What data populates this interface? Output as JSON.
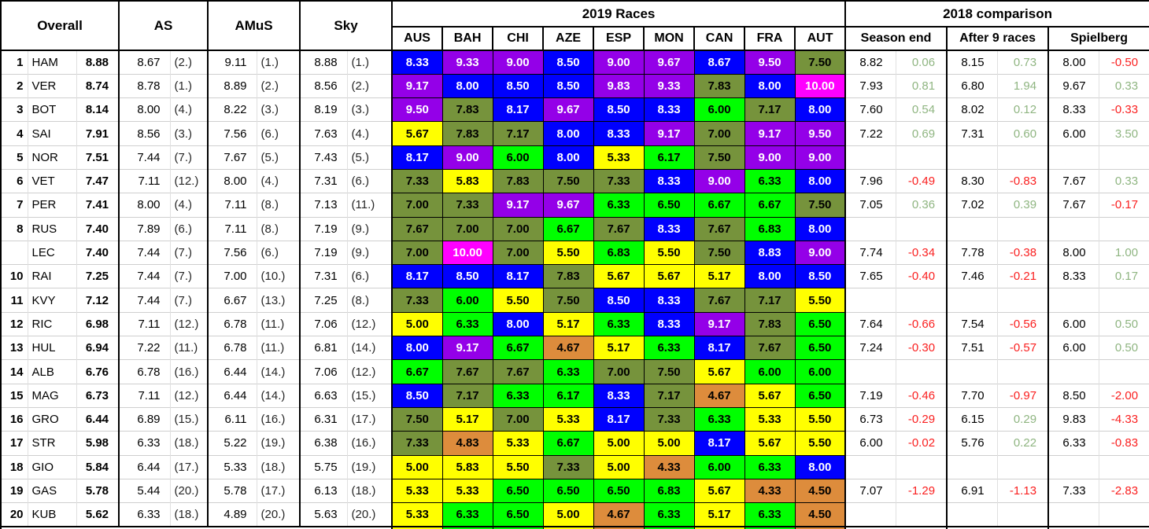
{
  "header": {
    "overall": "Overall",
    "as": "AS",
    "amus": "AMuS",
    "sky": "Sky",
    "races_title": "2019 Races",
    "race_cols": [
      "AUS",
      "BAH",
      "CHI",
      "AZE",
      "ESP",
      "MON",
      "CAN",
      "FRA",
      "AUT"
    ],
    "comparison_title": "2018 comparison",
    "comparison_cols": [
      "Season end",
      "After 9 races",
      "Spielberg"
    ]
  },
  "colors": {
    "band_10": "#FF00FF",
    "band_9": "#9400E8",
    "band_8": "#0000FE",
    "band_7": "#76933C",
    "band_6": "#00FF00",
    "band_5": "#FFFF00",
    "band_4": "#DD8C3C",
    "race_text_light": "#FFFFFF",
    "race_text_dark": "#000000",
    "diff_positive": "#8FB581",
    "diff_negative": "#FA2020"
  },
  "rows": [
    {
      "rank": "1",
      "code": "HAM",
      "overall": "8.88",
      "as": "8.67",
      "as_rank": "(2.)",
      "amus": "9.11",
      "amus_rank": "(1.)",
      "sky": "8.88",
      "sky_rank": "(1.)",
      "races": [
        "8.33",
        "9.33",
        "9.00",
        "8.50",
        "9.00",
        "9.67",
        "8.67",
        "9.50",
        "7.50"
      ],
      "season_end": "8.82",
      "season_end_diff": "0.06",
      "after9": "8.15",
      "after9_diff": "0.73",
      "spielberg": "8.00",
      "spielberg_diff": "-0.50"
    },
    {
      "rank": "2",
      "code": "VER",
      "overall": "8.74",
      "as": "8.78",
      "as_rank": "(1.)",
      "amus": "8.89",
      "amus_rank": "(2.)",
      "sky": "8.56",
      "sky_rank": "(2.)",
      "races": [
        "9.17",
        "8.00",
        "8.50",
        "8.50",
        "9.83",
        "9.33",
        "7.83",
        "8.00",
        "10.00"
      ],
      "season_end": "7.93",
      "season_end_diff": "0.81",
      "after9": "6.80",
      "after9_diff": "1.94",
      "spielberg": "9.67",
      "spielberg_diff": "0.33"
    },
    {
      "rank": "3",
      "code": "BOT",
      "overall": "8.14",
      "as": "8.00",
      "as_rank": "(4.)",
      "amus": "8.22",
      "amus_rank": "(3.)",
      "sky": "8.19",
      "sky_rank": "(3.)",
      "races": [
        "9.50",
        "7.83",
        "8.17",
        "9.67",
        "8.50",
        "8.33",
        "6.00",
        "7.17",
        "8.00"
      ],
      "season_end": "7.60",
      "season_end_diff": "0.54",
      "after9": "8.02",
      "after9_diff": "0.12",
      "spielberg": "8.33",
      "spielberg_diff": "-0.33"
    },
    {
      "rank": "4",
      "code": "SAI",
      "overall": "7.91",
      "as": "8.56",
      "as_rank": "(3.)",
      "amus": "7.56",
      "amus_rank": "(6.)",
      "sky": "7.63",
      "sky_rank": "(4.)",
      "races": [
        "5.67",
        "7.83",
        "7.17",
        "8.00",
        "8.33",
        "9.17",
        "7.00",
        "9.17",
        "9.50"
      ],
      "season_end": "7.22",
      "season_end_diff": "0.69",
      "after9": "7.31",
      "after9_diff": "0.60",
      "spielberg": "6.00",
      "spielberg_diff": "3.50"
    },
    {
      "rank": "5",
      "code": "NOR",
      "overall": "7.51",
      "as": "7.44",
      "as_rank": "(7.)",
      "amus": "7.67",
      "amus_rank": "(5.)",
      "sky": "7.43",
      "sky_rank": "(5.)",
      "races": [
        "8.17",
        "9.00",
        "6.00",
        "8.00",
        "5.33",
        "6.17",
        "7.50",
        "9.00",
        "9.00"
      ],
      "season_end": "",
      "season_end_diff": "",
      "after9": "",
      "after9_diff": "",
      "spielberg": "",
      "spielberg_diff": ""
    },
    {
      "rank": "6",
      "code": "VET",
      "overall": "7.47",
      "as": "7.11",
      "as_rank": "(12.)",
      "amus": "8.00",
      "amus_rank": "(4.)",
      "sky": "7.31",
      "sky_rank": "(6.)",
      "races": [
        "7.33",
        "5.83",
        "7.83",
        "7.50",
        "7.33",
        "8.33",
        "9.00",
        "6.33",
        "8.00"
      ],
      "season_end": "7.96",
      "season_end_diff": "-0.49",
      "after9": "8.30",
      "after9_diff": "-0.83",
      "spielberg": "7.67",
      "spielberg_diff": "0.33"
    },
    {
      "rank": "7",
      "code": "PER",
      "overall": "7.41",
      "as": "8.00",
      "as_rank": "(4.)",
      "amus": "7.11",
      "amus_rank": "(8.)",
      "sky": "7.13",
      "sky_rank": "(11.)",
      "races": [
        "7.00",
        "7.33",
        "9.17",
        "9.67",
        "6.33",
        "6.50",
        "6.67",
        "6.67",
        "7.50"
      ],
      "season_end": "7.05",
      "season_end_diff": "0.36",
      "after9": "7.02",
      "after9_diff": "0.39",
      "spielberg": "7.67",
      "spielberg_diff": "-0.17"
    },
    {
      "rank": "8",
      "code": "RUS",
      "overall": "7.40",
      "as": "7.89",
      "as_rank": "(6.)",
      "amus": "7.11",
      "amus_rank": "(8.)",
      "sky": "7.19",
      "sky_rank": "(9.)",
      "races": [
        "7.67",
        "7.00",
        "7.00",
        "6.67",
        "7.67",
        "8.33",
        "7.67",
        "6.83",
        "8.00"
      ],
      "season_end": "",
      "season_end_diff": "",
      "after9": "",
      "after9_diff": "",
      "spielberg": "",
      "spielberg_diff": ""
    },
    {
      "rank": "",
      "code": "LEC",
      "overall": "7.40",
      "as": "7.44",
      "as_rank": "(7.)",
      "amus": "7.56",
      "amus_rank": "(6.)",
      "sky": "7.19",
      "sky_rank": "(9.)",
      "races": [
        "7.00",
        "10.00",
        "7.00",
        "5.50",
        "6.83",
        "5.50",
        "7.50",
        "8.83",
        "9.00"
      ],
      "season_end": "7.74",
      "season_end_diff": "-0.34",
      "after9": "7.78",
      "after9_diff": "-0.38",
      "spielberg": "8.00",
      "spielberg_diff": "1.00"
    },
    {
      "rank": "10",
      "code": "RAI",
      "overall": "7.25",
      "as": "7.44",
      "as_rank": "(7.)",
      "amus": "7.00",
      "amus_rank": "(10.)",
      "sky": "7.31",
      "sky_rank": "(6.)",
      "races": [
        "8.17",
        "8.50",
        "8.17",
        "7.83",
        "5.67",
        "5.67",
        "5.17",
        "8.00",
        "8.50"
      ],
      "season_end": "7.65",
      "season_end_diff": "-0.40",
      "after9": "7.46",
      "after9_diff": "-0.21",
      "spielberg": "8.33",
      "spielberg_diff": "0.17"
    },
    {
      "rank": "11",
      "code": "KVY",
      "overall": "7.12",
      "as": "7.44",
      "as_rank": "(7.)",
      "amus": "6.67",
      "amus_rank": "(13.)",
      "sky": "7.25",
      "sky_rank": "(8.)",
      "races": [
        "7.33",
        "6.00",
        "5.50",
        "7.50",
        "8.50",
        "8.33",
        "7.67",
        "7.17",
        "5.50"
      ],
      "season_end": "",
      "season_end_diff": "",
      "after9": "",
      "after9_diff": "",
      "spielberg": "",
      "spielberg_diff": ""
    },
    {
      "rank": "12",
      "code": "RIC",
      "overall": "6.98",
      "as": "7.11",
      "as_rank": "(12.)",
      "amus": "6.78",
      "amus_rank": "(11.)",
      "sky": "7.06",
      "sky_rank": "(12.)",
      "races": [
        "5.00",
        "6.33",
        "8.00",
        "5.17",
        "6.33",
        "8.33",
        "9.17",
        "7.83",
        "6.50"
      ],
      "season_end": "7.64",
      "season_end_diff": "-0.66",
      "after9": "7.54",
      "after9_diff": "-0.56",
      "spielberg": "6.00",
      "spielberg_diff": "0.50"
    },
    {
      "rank": "13",
      "code": "HUL",
      "overall": "6.94",
      "as": "7.22",
      "as_rank": "(11.)",
      "amus": "6.78",
      "amus_rank": "(11.)",
      "sky": "6.81",
      "sky_rank": "(14.)",
      "races": [
        "8.00",
        "9.17",
        "6.67",
        "4.67",
        "5.17",
        "6.33",
        "8.17",
        "7.67",
        "6.50"
      ],
      "season_end": "7.24",
      "season_end_diff": "-0.30",
      "after9": "7.51",
      "after9_diff": "-0.57",
      "spielberg": "6.00",
      "spielberg_diff": "0.50"
    },
    {
      "rank": "14",
      "code": "ALB",
      "overall": "6.76",
      "as": "6.78",
      "as_rank": "(16.)",
      "amus": "6.44",
      "amus_rank": "(14.)",
      "sky": "7.06",
      "sky_rank": "(12.)",
      "races": [
        "6.67",
        "7.67",
        "7.67",
        "6.33",
        "7.00",
        "7.50",
        "5.67",
        "6.00",
        "6.00"
      ],
      "season_end": "",
      "season_end_diff": "",
      "after9": "",
      "after9_diff": "",
      "spielberg": "",
      "spielberg_diff": ""
    },
    {
      "rank": "15",
      "code": "MAG",
      "overall": "6.73",
      "as": "7.11",
      "as_rank": "(12.)",
      "amus": "6.44",
      "amus_rank": "(14.)",
      "sky": "6.63",
      "sky_rank": "(15.)",
      "races": [
        "8.50",
        "7.17",
        "6.33",
        "6.17",
        "8.33",
        "7.17",
        "4.67",
        "5.67",
        "6.50"
      ],
      "season_end": "7.19",
      "season_end_diff": "-0.46",
      "after9": "7.70",
      "after9_diff": "-0.97",
      "spielberg": "8.50",
      "spielberg_diff": "-2.00"
    },
    {
      "rank": "16",
      "code": "GRO",
      "overall": "6.44",
      "as": "6.89",
      "as_rank": "(15.)",
      "amus": "6.11",
      "amus_rank": "(16.)",
      "sky": "6.31",
      "sky_rank": "(17.)",
      "races": [
        "7.50",
        "5.17",
        "7.00",
        "5.33",
        "8.17",
        "7.33",
        "6.33",
        "5.33",
        "5.50"
      ],
      "season_end": "6.73",
      "season_end_diff": "-0.29",
      "after9": "6.15",
      "after9_diff": "0.29",
      "spielberg": "9.83",
      "spielberg_diff": "-4.33"
    },
    {
      "rank": "17",
      "code": "STR",
      "overall": "5.98",
      "as": "6.33",
      "as_rank": "(18.)",
      "amus": "5.22",
      "amus_rank": "(19.)",
      "sky": "6.38",
      "sky_rank": "(16.)",
      "races": [
        "7.33",
        "4.83",
        "5.33",
        "6.67",
        "5.00",
        "5.00",
        "8.17",
        "5.67",
        "5.50"
      ],
      "season_end": "6.00",
      "season_end_diff": "-0.02",
      "after9": "5.76",
      "after9_diff": "0.22",
      "spielberg": "6.33",
      "spielberg_diff": "-0.83"
    },
    {
      "rank": "18",
      "code": "GIO",
      "overall": "5.84",
      "as": "6.44",
      "as_rank": "(17.)",
      "amus": "5.33",
      "amus_rank": "(18.)",
      "sky": "5.75",
      "sky_rank": "(19.)",
      "races": [
        "5.00",
        "5.83",
        "5.50",
        "7.33",
        "5.00",
        "4.33",
        "6.00",
        "6.33",
        "8.00"
      ],
      "season_end": "",
      "season_end_diff": "",
      "after9": "",
      "after9_diff": "",
      "spielberg": "",
      "spielberg_diff": ""
    },
    {
      "rank": "19",
      "code": "GAS",
      "overall": "5.78",
      "as": "5.44",
      "as_rank": "(20.)",
      "amus": "5.78",
      "amus_rank": "(17.)",
      "sky": "6.13",
      "sky_rank": "(18.)",
      "races": [
        "5.33",
        "5.33",
        "6.50",
        "6.50",
        "6.50",
        "6.83",
        "5.67",
        "4.33",
        "4.50"
      ],
      "season_end": "7.07",
      "season_end_diff": "-1.29",
      "after9": "6.91",
      "after9_diff": "-1.13",
      "spielberg": "7.33",
      "spielberg_diff": "-2.83"
    },
    {
      "rank": "20",
      "code": "KUB",
      "overall": "5.62",
      "as": "6.33",
      "as_rank": "(18.)",
      "amus": "4.89",
      "amus_rank": "(20.)",
      "sky": "5.63",
      "sky_rank": "(20.)",
      "races": [
        "5.33",
        "6.33",
        "6.50",
        "5.00",
        "4.67",
        "6.33",
        "5.17",
        "6.33",
        "4.50"
      ],
      "season_end": "",
      "season_end_diff": "",
      "after9": "",
      "after9_diff": "",
      "spielberg": "",
      "spielberg_diff": ""
    }
  ]
}
